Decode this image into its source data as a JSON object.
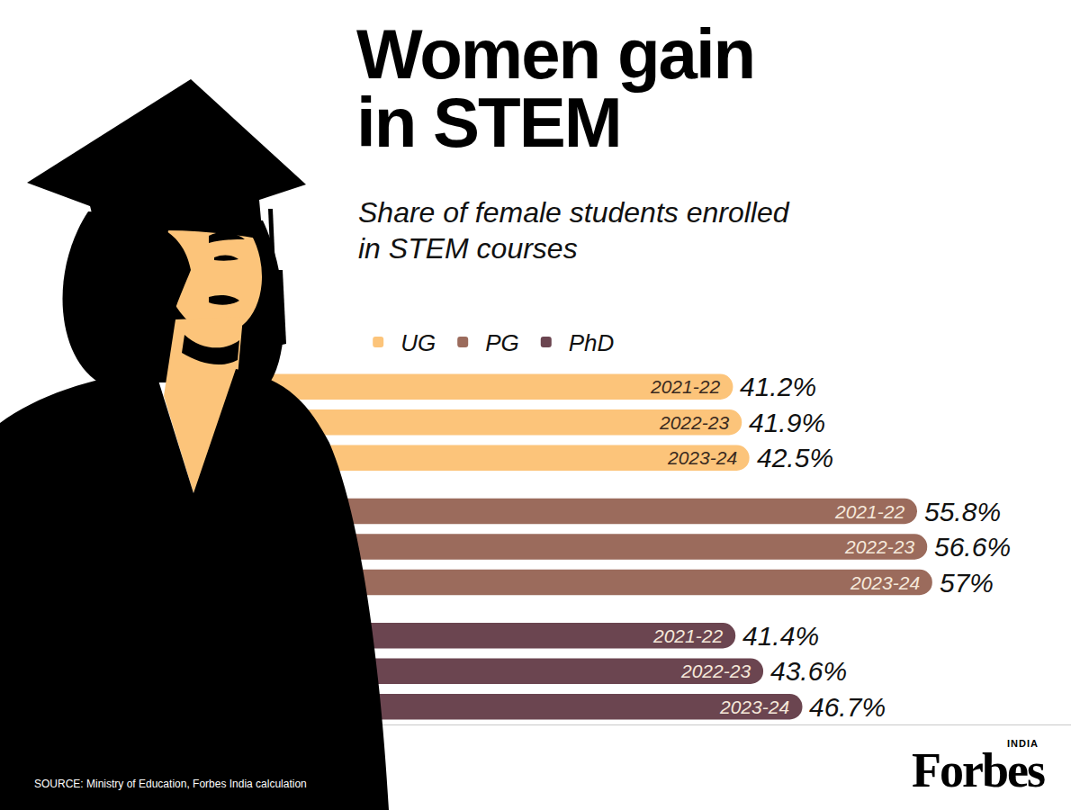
{
  "chart_data": {
    "type": "bar",
    "orientation": "horizontal",
    "title": "Women gain in STEM",
    "subtitle": "Share of female students enrolled in STEM courses",
    "categories": [
      "2021-22",
      "2022-23",
      "2023-24"
    ],
    "series": [
      {
        "name": "UG",
        "color": "#fcc47a",
        "values": [
          41.2,
          41.9,
          42.5
        ],
        "value_labels": [
          "41.2%",
          "41.9%",
          "42.5%"
        ]
      },
      {
        "name": "PG",
        "color": "#9b6b5c",
        "values": [
          55.8,
          56.6,
          57
        ],
        "value_labels": [
          "55.8%",
          "56.6%",
          "57%"
        ]
      },
      {
        "name": "PhD",
        "color": "#6b4550",
        "values": [
          41.4,
          43.6,
          46.7
        ],
        "value_labels": [
          "41.4%",
          "43.6%",
          "46.7%"
        ]
      }
    ],
    "xlim": [
      0,
      68
    ],
    "grid": false,
    "tick_labels": false,
    "data_labels": true,
    "legend": "top",
    "source": "SOURCE: Ministry of Education, Forbes India calculation",
    "logo": "Forbes",
    "logo_sup": "INDIA"
  }
}
